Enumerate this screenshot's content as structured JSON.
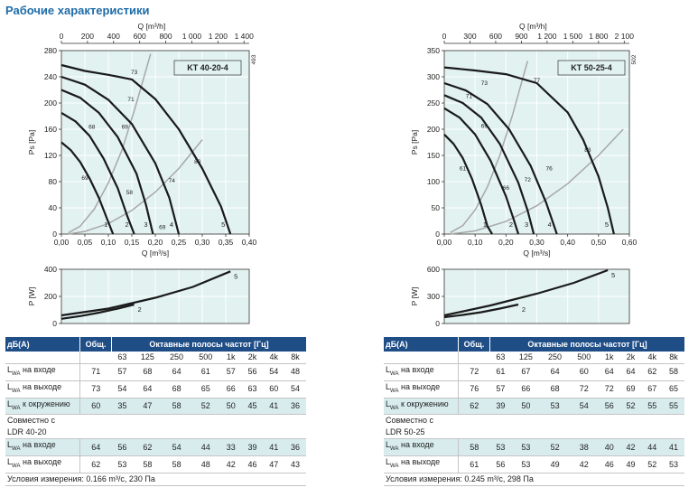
{
  "page": {
    "title": "Рабочие характеристики"
  },
  "chart_data": [
    {
      "type": "line",
      "name": "KT 40-20-4",
      "title": "KT 40-20-4",
      "code": "493",
      "xlabel": "Q [m³/s]",
      "ylabel": "Ps [Pa]",
      "xlim": [
        0,
        0.4
      ],
      "ylim": [
        0,
        280
      ],
      "x_ticks": [
        0,
        0.05,
        0.1,
        0.15,
        0.2,
        0.25,
        0.3,
        0.35,
        0.4
      ],
      "x_tick_labels": [
        "0,00",
        "0,05",
        "0,10",
        "0,15",
        "0,20",
        "0,25",
        "0,30",
        "0,35",
        "0,40"
      ],
      "y_ticks": [
        0,
        40,
        80,
        120,
        160,
        200,
        240,
        280
      ],
      "top_xlabel": "Q [m³/h]",
      "top_x_ticks": [
        0,
        200,
        400,
        600,
        800,
        1000,
        1200,
        1400
      ],
      "top_x_tick_labels": [
        "0",
        "200",
        "400",
        "600",
        "800",
        "1 000",
        "1 200",
        "1 400"
      ],
      "curves": [
        {
          "label": "1",
          "x": [
            0,
            0.02,
            0.04,
            0.06,
            0.08,
            0.1,
            0.11
          ],
          "y": [
            140,
            128,
            110,
            85,
            55,
            18,
            0
          ]
        },
        {
          "label": "2",
          "x": [
            0,
            0.03,
            0.06,
            0.09,
            0.12,
            0.14,
            0.155
          ],
          "y": [
            185,
            172,
            150,
            115,
            70,
            28,
            0
          ]
        },
        {
          "label": "3",
          "x": [
            0,
            0.04,
            0.08,
            0.12,
            0.16,
            0.18,
            0.195
          ],
          "y": [
            220,
            208,
            185,
            148,
            92,
            45,
            0
          ]
        },
        {
          "label": "4",
          "x": [
            0,
            0.05,
            0.1,
            0.15,
            0.2,
            0.23,
            0.25
          ],
          "y": [
            240,
            228,
            205,
            168,
            108,
            55,
            0
          ]
        },
        {
          "label": "5",
          "x": [
            0,
            0.05,
            0.1,
            0.15,
            0.2,
            0.25,
            0.3,
            0.34,
            0.36
          ],
          "y": [
            258,
            249,
            243,
            236,
            206,
            160,
            100,
            42,
            0
          ]
        }
      ],
      "system_curves": [
        {
          "x": [
            0.015,
            0.04,
            0.07,
            0.1,
            0.13,
            0.16,
            0.19
          ],
          "y": [
            2,
            12,
            38,
            78,
            130,
            200,
            275
          ]
        },
        {
          "x": [
            0.015,
            0.05,
            0.1,
            0.15,
            0.2,
            0.25,
            0.3
          ],
          "y": [
            0,
            4,
            16,
            36,
            64,
            100,
            144
          ]
        }
      ],
      "efficiency_labels": [
        {
          "text": "73",
          "x": 0.155,
          "y": 248
        },
        {
          "text": "71",
          "x": 0.148,
          "y": 207
        },
        {
          "text": "68",
          "x": 0.065,
          "y": 165
        },
        {
          "text": "69",
          "x": 0.135,
          "y": 165
        },
        {
          "text": "80",
          "x": 0.29,
          "y": 112
        },
        {
          "text": "74",
          "x": 0.235,
          "y": 83
        },
        {
          "text": "69",
          "x": 0.05,
          "y": 87
        },
        {
          "text": "58",
          "x": 0.145,
          "y": 65
        },
        {
          "text": "69",
          "x": 0.215,
          "y": 12
        }
      ],
      "power": {
        "ylabel": "P [W]",
        "ylim": [
          0,
          400
        ],
        "y_ticks": [
          0,
          200,
          400
        ],
        "curves": [
          {
            "label": "2",
            "x": [
              0,
              0.04,
              0.08,
              0.12,
              0.155
            ],
            "y": [
              35,
              55,
              80,
              110,
              140
            ]
          },
          {
            "label": "5",
            "x": [
              0,
              0.1,
              0.2,
              0.28,
              0.36
            ],
            "y": [
              60,
              110,
              190,
              270,
              385
            ]
          }
        ]
      }
    },
    {
      "type": "line",
      "name": "KT 50-25-4",
      "title": "KT 50-25-4",
      "code": "502",
      "xlabel": "Q [m³/s]",
      "ylabel": "Ps [Pa]",
      "xlim": [
        0,
        0.6
      ],
      "ylim": [
        0,
        350
      ],
      "x_ticks": [
        0,
        0.1,
        0.2,
        0.3,
        0.4,
        0.5,
        0.6
      ],
      "x_tick_labels": [
        "0,00",
        "0,10",
        "0,20",
        "0,30",
        "0,40",
        "0,50",
        "0,60"
      ],
      "y_ticks": [
        0,
        50,
        100,
        150,
        200,
        250,
        300,
        350
      ],
      "top_xlabel": "Q [m³/h]",
      "top_x_ticks": [
        0,
        300,
        600,
        900,
        1200,
        1500,
        1800,
        2100
      ],
      "top_x_tick_labels": [
        "0",
        "300",
        "600",
        "900",
        "1 200",
        "1 500",
        "1 800",
        "2 100"
      ],
      "curves": [
        {
          "label": "1",
          "x": [
            0,
            0.03,
            0.06,
            0.09,
            0.12,
            0.14,
            0.155
          ],
          "y": [
            190,
            172,
            145,
            105,
            55,
            15,
            0
          ]
        },
        {
          "label": "2",
          "x": [
            0,
            0.05,
            0.1,
            0.15,
            0.2,
            0.225,
            0.24
          ],
          "y": [
            240,
            222,
            190,
            140,
            72,
            28,
            0
          ]
        },
        {
          "label": "3",
          "x": [
            0,
            0.06,
            0.12,
            0.18,
            0.24,
            0.27,
            0.29
          ],
          "y": [
            265,
            250,
            222,
            172,
            98,
            45,
            0
          ]
        },
        {
          "label": "4",
          "x": [
            0,
            0.07,
            0.14,
            0.21,
            0.28,
            0.33,
            0.365
          ],
          "y": [
            288,
            274,
            248,
            200,
            130,
            60,
            0
          ]
        },
        {
          "label": "5",
          "x": [
            0,
            0.1,
            0.2,
            0.3,
            0.4,
            0.45,
            0.5,
            0.53,
            0.55
          ],
          "y": [
            318,
            312,
            305,
            288,
            232,
            180,
            110,
            50,
            0
          ]
        }
      ],
      "system_curves": [
        {
          "x": [
            0.02,
            0.06,
            0.1,
            0.14,
            0.18,
            0.22,
            0.27
          ],
          "y": [
            3,
            16,
            46,
            90,
            150,
            225,
            330
          ]
        },
        {
          "x": [
            0.02,
            0.1,
            0.2,
            0.3,
            0.4,
            0.5,
            0.58
          ],
          "y": [
            0,
            6,
            24,
            54,
            96,
            150,
            200
          ]
        }
      ],
      "efficiency_labels": [
        {
          "text": "73",
          "x": 0.13,
          "y": 290
        },
        {
          "text": "77",
          "x": 0.3,
          "y": 295
        },
        {
          "text": "71",
          "x": 0.08,
          "y": 265
        },
        {
          "text": "69",
          "x": 0.13,
          "y": 208
        },
        {
          "text": "83",
          "x": 0.465,
          "y": 162
        },
        {
          "text": "61",
          "x": 0.06,
          "y": 127
        },
        {
          "text": "76",
          "x": 0.34,
          "y": 127
        },
        {
          "text": "72",
          "x": 0.27,
          "y": 105
        },
        {
          "text": "66",
          "x": 0.2,
          "y": 90
        }
      ],
      "power": {
        "ylabel": "P [W]",
        "ylim": [
          0,
          600
        ],
        "y_ticks": [
          0,
          300,
          600
        ],
        "curves": [
          {
            "label": "2",
            "x": [
              0,
              0.06,
              0.12,
              0.18,
              0.24
            ],
            "y": [
              70,
              95,
              125,
              165,
              210
            ]
          },
          {
            "label": "5",
            "x": [
              0,
              0.15,
              0.3,
              0.42,
              0.53
            ],
            "y": [
              90,
              200,
              330,
              450,
              590
            ]
          }
        ]
      }
    }
  ],
  "tables": [
    {
      "header": {
        "db": "дБ(A)",
        "total": "Общ.",
        "bands_title": "Октавные полосы частот [Гц]"
      },
      "freqs": [
        "63",
        "125",
        "250",
        "500",
        "1k",
        "2k",
        "4k",
        "8k"
      ],
      "rows": [
        {
          "sub": "WA",
          "label": " на входе",
          "total": "71",
          "values": [
            "57",
            "68",
            "64",
            "61",
            "57",
            "56",
            "54",
            "48"
          ],
          "shade": false
        },
        {
          "sub": "WA",
          "label": " на выходе",
          "total": "73",
          "values": [
            "54",
            "64",
            "68",
            "65",
            "66",
            "63",
            "60",
            "54"
          ],
          "shade": false
        },
        {
          "sub": "WA",
          "label": " к окружению",
          "total": "60",
          "values": [
            "35",
            "47",
            "58",
            "52",
            "50",
            "45",
            "41",
            "36"
          ],
          "shade": true
        }
      ],
      "joint_line1": "Совместно с",
      "joint_line2": "LDR 40-20",
      "joint_rows": [
        {
          "sub": "WA",
          "label": " на входе",
          "total": "64",
          "values": [
            "56",
            "62",
            "54",
            "44",
            "33",
            "39",
            "41",
            "36"
          ],
          "shade": true
        },
        {
          "sub": "WA",
          "label": " на выходе",
          "total": "62",
          "values": [
            "53",
            "58",
            "58",
            "48",
            "42",
            "46",
            "47",
            "43"
          ],
          "shade": false
        }
      ],
      "conditions": "Условия измерения: 0.166 m³/c, 230 Па"
    },
    {
      "header": {
        "db": "дБ(A)",
        "total": "Общ.",
        "bands_title": "Октавные полосы частот [Гц]"
      },
      "freqs": [
        "63",
        "125",
        "250",
        "500",
        "1k",
        "2k",
        "4k",
        "8k"
      ],
      "rows": [
        {
          "sub": "WA",
          "label": " на входе",
          "total": "72",
          "values": [
            "61",
            "67",
            "64",
            "60",
            "64",
            "64",
            "62",
            "58"
          ],
          "shade": false
        },
        {
          "sub": "WA",
          "label": " на выходе",
          "total": "76",
          "values": [
            "57",
            "66",
            "68",
            "72",
            "72",
            "69",
            "67",
            "65"
          ],
          "shade": false
        },
        {
          "sub": "WA",
          "label": " к окружению",
          "total": "62",
          "values": [
            "39",
            "50",
            "53",
            "54",
            "56",
            "52",
            "55",
            "55"
          ],
          "shade": true
        }
      ],
      "joint_line1": "Совместно с",
      "joint_line2": "LDR 50-25",
      "joint_rows": [
        {
          "sub": "WA",
          "label": " на входе",
          "total": "58",
          "values": [
            "53",
            "53",
            "52",
            "38",
            "40",
            "42",
            "44",
            "41"
          ],
          "shade": true
        },
        {
          "sub": "WA",
          "label": " на выходе",
          "total": "61",
          "values": [
            "56",
            "53",
            "49",
            "42",
            "46",
            "49",
            "52",
            "53"
          ],
          "shade": false
        }
      ],
      "conditions": "Условия измерения: 0.245 m³/c, 298 Па"
    }
  ],
  "colors": {
    "plot_bg": "#e1f2f1",
    "grid": "#ffffff",
    "fan_curve": "#1a1a1a",
    "system_curve": "#a7a7a7",
    "header_bg": "#1f4d86",
    "row_shade": "#d8ecee",
    "title": "#1e6ca8"
  }
}
